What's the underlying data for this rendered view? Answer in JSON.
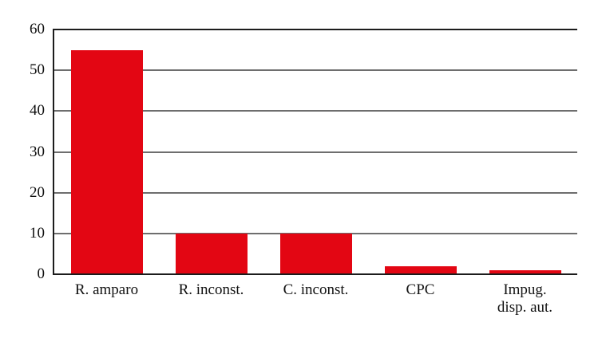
{
  "chart_data": {
    "type": "bar",
    "categories": [
      "R. amparo",
      "R. inconst.",
      "C. inconst.",
      "CPC",
      "Impug.\ndisp. aut."
    ],
    "values": [
      55,
      10,
      10,
      2,
      1
    ],
    "title": "",
    "xlabel": "",
    "ylabel": "",
    "ylim": [
      0,
      60
    ],
    "yticks": [
      0,
      10,
      20,
      30,
      40,
      50,
      60
    ],
    "legend": "none",
    "grid": "horizontal",
    "colors": {
      "bar": "#e30613",
      "gridline": "#6e6e6e",
      "axis": "#1c1c1c",
      "background": "#ffffff",
      "tick_text": "#111111"
    }
  }
}
